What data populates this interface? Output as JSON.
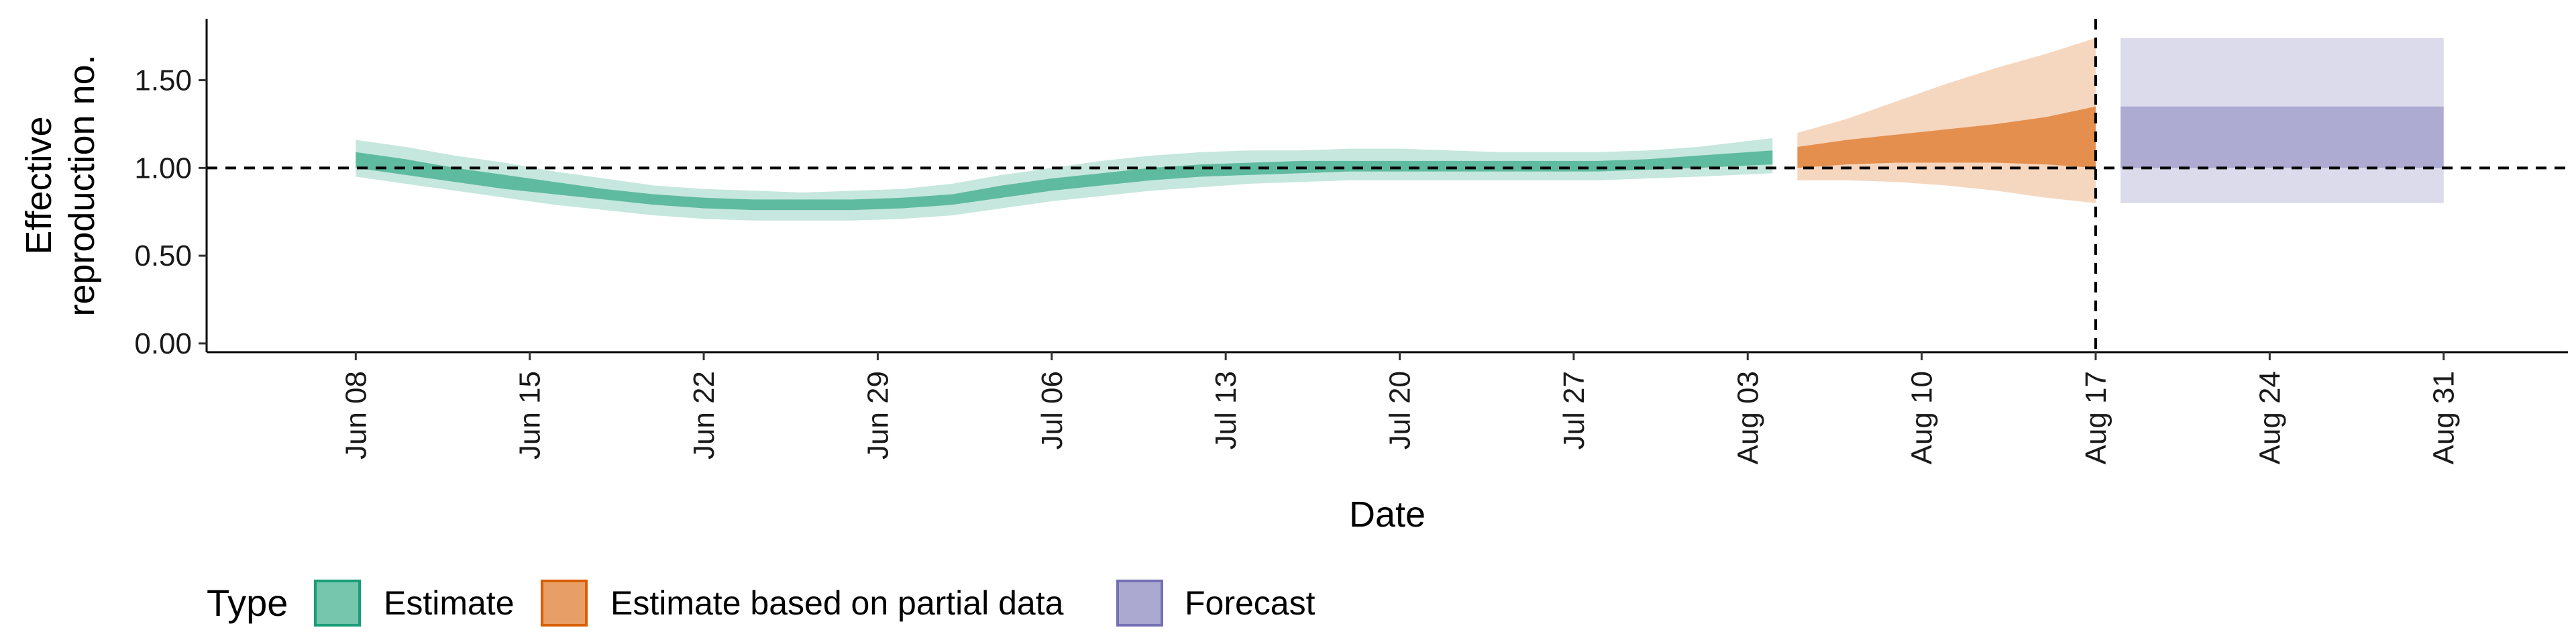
{
  "chart_data": {
    "type": "area",
    "xlabel": "Date",
    "ylabel_lines": [
      "Effective",
      "reproduction no."
    ],
    "ylim": [
      -0.05,
      1.85
    ],
    "yticks": [
      0.0,
      0.5,
      1.0,
      1.5
    ],
    "ytick_labels": [
      "0.00",
      "0.50",
      "1.00",
      "1.50"
    ],
    "xlim": [
      "2020-06-02",
      "2020-09-05"
    ],
    "xticks": [
      "2020-06-08",
      "2020-06-15",
      "2020-06-22",
      "2020-06-29",
      "2020-07-06",
      "2020-07-13",
      "2020-07-20",
      "2020-07-27",
      "2020-08-03",
      "2020-08-10",
      "2020-08-17",
      "2020-08-24",
      "2020-08-31"
    ],
    "xtick_labels": [
      "Jun 08",
      "Jun 15",
      "Jun 22",
      "Jun 29",
      "Jul 06",
      "Jul 13",
      "Jul 20",
      "Jul 27",
      "Aug 03",
      "Aug 10",
      "Aug 17",
      "Aug 24",
      "Aug 31"
    ],
    "reference_line_y": 1.0,
    "reference_line_x": "2020-08-17",
    "grid": false,
    "legend_position": "bottom",
    "legend_title": "Type",
    "series": [
      {
        "name": "Estimate",
        "color": "#1b9e77",
        "dates": [
          "2020-06-08",
          "2020-06-10",
          "2020-06-12",
          "2020-06-14",
          "2020-06-16",
          "2020-06-18",
          "2020-06-20",
          "2020-06-22",
          "2020-06-24",
          "2020-06-26",
          "2020-06-28",
          "2020-06-30",
          "2020-07-02",
          "2020-07-04",
          "2020-07-06",
          "2020-07-08",
          "2020-07-10",
          "2020-07-12",
          "2020-07-14",
          "2020-07-16",
          "2020-07-18",
          "2020-07-20",
          "2020-07-22",
          "2020-07-24",
          "2020-07-26",
          "2020-07-28",
          "2020-07-30",
          "2020-08-01",
          "2020-08-04"
        ],
        "lower90": [
          0.95,
          0.91,
          0.87,
          0.83,
          0.79,
          0.76,
          0.73,
          0.71,
          0.7,
          0.7,
          0.7,
          0.71,
          0.73,
          0.77,
          0.81,
          0.84,
          0.87,
          0.89,
          0.91,
          0.92,
          0.93,
          0.93,
          0.93,
          0.93,
          0.93,
          0.93,
          0.94,
          0.95,
          0.97
        ],
        "upper90": [
          1.16,
          1.12,
          1.07,
          1.03,
          0.98,
          0.94,
          0.9,
          0.88,
          0.87,
          0.86,
          0.87,
          0.88,
          0.91,
          0.96,
          1.0,
          1.04,
          1.07,
          1.09,
          1.1,
          1.1,
          1.11,
          1.11,
          1.1,
          1.09,
          1.09,
          1.09,
          1.1,
          1.12,
          1.17
        ],
        "lower50": [
          1.0,
          0.96,
          0.92,
          0.88,
          0.85,
          0.82,
          0.79,
          0.77,
          0.76,
          0.76,
          0.76,
          0.77,
          0.79,
          0.83,
          0.87,
          0.9,
          0.93,
          0.95,
          0.96,
          0.97,
          0.98,
          0.98,
          0.98,
          0.98,
          0.98,
          0.98,
          0.99,
          1.0,
          1.02
        ],
        "upper50": [
          1.09,
          1.05,
          1.0,
          0.96,
          0.92,
          0.88,
          0.85,
          0.83,
          0.82,
          0.82,
          0.82,
          0.83,
          0.85,
          0.9,
          0.94,
          0.97,
          1.0,
          1.02,
          1.03,
          1.04,
          1.04,
          1.04,
          1.04,
          1.04,
          1.04,
          1.04,
          1.05,
          1.07,
          1.1
        ]
      },
      {
        "name": "Estimate based on partial data",
        "color": "#d95f02",
        "dates": [
          "2020-08-05",
          "2020-08-07",
          "2020-08-09",
          "2020-08-11",
          "2020-08-13",
          "2020-08-15",
          "2020-08-17"
        ],
        "lower90": [
          0.93,
          0.93,
          0.92,
          0.9,
          0.87,
          0.83,
          0.8
        ],
        "upper90": [
          1.2,
          1.28,
          1.38,
          1.48,
          1.57,
          1.65,
          1.74
        ],
        "lower50": [
          1.0,
          1.02,
          1.03,
          1.03,
          1.03,
          1.02,
          1.0
        ],
        "upper50": [
          1.12,
          1.16,
          1.19,
          1.22,
          1.25,
          1.29,
          1.35
        ]
      },
      {
        "name": "Forecast",
        "color": "#7570b3",
        "dates": [
          "2020-08-18",
          "2020-08-31"
        ],
        "lower90": [
          0.8,
          0.8
        ],
        "upper90": [
          1.74,
          1.74
        ],
        "lower50": [
          1.0,
          1.0
        ],
        "upper50": [
          1.35,
          1.35
        ]
      }
    ]
  }
}
